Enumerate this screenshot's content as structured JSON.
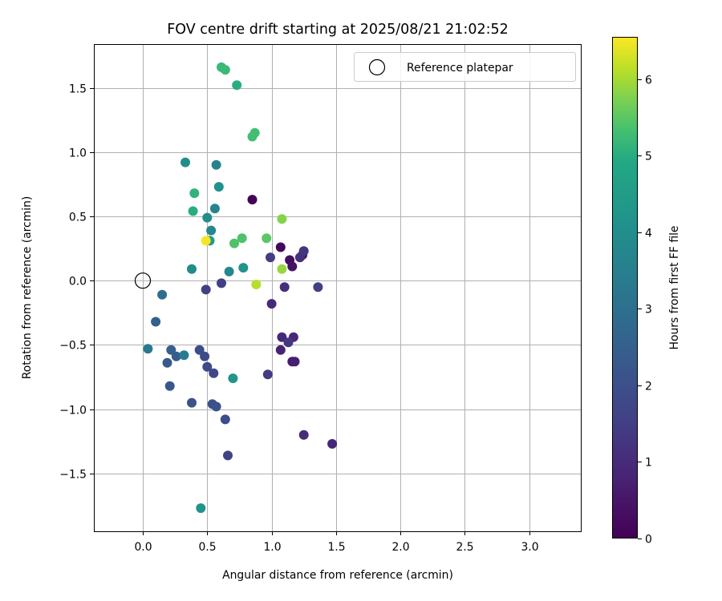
{
  "chart_data": {
    "type": "scatter",
    "title": "FOV centre drift starting at 2025/08/21 21:02:52",
    "xlabel": "Angular distance from reference (arcmin)",
    "ylabel": "Rotation from reference (arcmin)",
    "xlim": [
      -0.38,
      3.4
    ],
    "ylim": [
      -1.95,
      1.84
    ],
    "xticks": [
      0.0,
      0.5,
      1.0,
      1.5,
      2.0,
      2.5,
      3.0
    ],
    "xtick_labels": [
      "0.0",
      "0.5",
      "1.0",
      "1.5",
      "2.0",
      "2.5",
      "3.0"
    ],
    "yticks": [
      -1.5,
      -1.0,
      -0.5,
      0.0,
      0.5,
      1.0,
      1.5
    ],
    "ytick_labels": [
      "−1.5",
      "−1.0",
      "−0.5",
      "0.0",
      "0.5",
      "1.0",
      "1.5"
    ],
    "grid": true,
    "legend": {
      "placement": "top-right",
      "entries": [
        {
          "label": "Reference platepar",
          "marker": "open-circle"
        }
      ]
    },
    "reference_point": {
      "x": 0.0,
      "y": 0.0
    },
    "colorbar": {
      "label": "Hours from first FF file",
      "colormap": "viridis",
      "range": [
        0,
        6.55
      ],
      "ticks": [
        0,
        1,
        2,
        3,
        4,
        5,
        6
      ],
      "tick_labels": [
        "0",
        "1",
        "2",
        "3",
        "4",
        "5",
        "6"
      ]
    },
    "points": [
      {
        "x": 0.85,
        "y": 0.63,
        "hours": 0.05
      },
      {
        "x": 1.07,
        "y": 0.26,
        "hours": 0.15
      },
      {
        "x": 1.14,
        "y": 0.16,
        "hours": 0.3
      },
      {
        "x": 1.16,
        "y": 0.11,
        "hours": 0.4
      },
      {
        "x": 1.24,
        "y": 0.2,
        "hours": 0.5
      },
      {
        "x": 1.16,
        "y": -0.63,
        "hours": 0.6
      },
      {
        "x": 1.18,
        "y": -0.63,
        "hours": 0.7
      },
      {
        "x": 1.07,
        "y": -0.54,
        "hours": 0.8
      },
      {
        "x": 1.08,
        "y": -0.44,
        "hours": 0.9
      },
      {
        "x": 1.17,
        "y": -0.44,
        "hours": 0.95
      },
      {
        "x": 1.0,
        "y": -0.18,
        "hours": 1.0
      },
      {
        "x": 1.1,
        "y": -0.05,
        "hours": 1.1
      },
      {
        "x": 1.22,
        "y": 0.18,
        "hours": 1.15
      },
      {
        "x": 1.25,
        "y": 0.23,
        "hours": 1.25
      },
      {
        "x": 1.47,
        "y": -1.27,
        "hours": 0.9
      },
      {
        "x": 1.25,
        "y": -1.2,
        "hours": 1.05
      },
      {
        "x": 1.13,
        "y": -0.48,
        "hours": 1.3
      },
      {
        "x": 0.97,
        "y": -0.73,
        "hours": 1.4
      },
      {
        "x": 0.99,
        "y": 0.18,
        "hours": 1.45
      },
      {
        "x": 1.36,
        "y": -0.05,
        "hours": 1.5
      },
      {
        "x": 0.61,
        "y": -0.02,
        "hours": 1.5
      },
      {
        "x": 0.49,
        "y": -0.07,
        "hours": 1.55
      },
      {
        "x": 0.66,
        "y": -1.36,
        "hours": 1.6
      },
      {
        "x": 0.55,
        "y": -0.72,
        "hours": 1.7
      },
      {
        "x": 0.5,
        "y": -0.67,
        "hours": 1.8
      },
      {
        "x": 0.48,
        "y": -0.59,
        "hours": 1.85
      },
      {
        "x": 0.44,
        "y": -0.54,
        "hours": 1.9
      },
      {
        "x": 0.64,
        "y": -1.08,
        "hours": 1.95
      },
      {
        "x": 0.54,
        "y": -0.96,
        "hours": 2.0
      },
      {
        "x": 0.57,
        "y": -0.98,
        "hours": 2.0
      },
      {
        "x": 0.38,
        "y": -0.95,
        "hours": 2.1
      },
      {
        "x": 0.21,
        "y": -0.82,
        "hours": 2.2
      },
      {
        "x": 0.19,
        "y": -0.64,
        "hours": 2.3
      },
      {
        "x": 0.26,
        "y": -0.59,
        "hours": 2.4
      },
      {
        "x": 0.22,
        "y": -0.54,
        "hours": 2.45
      },
      {
        "x": 0.1,
        "y": -0.32,
        "hours": 2.5
      },
      {
        "x": 0.15,
        "y": -0.11,
        "hours": 2.9
      },
      {
        "x": 0.04,
        "y": -0.53,
        "hours": 3.3
      },
      {
        "x": 0.32,
        "y": -0.58,
        "hours": 3.4
      },
      {
        "x": 0.57,
        "y": 0.9,
        "hours": 3.6
      },
      {
        "x": 0.56,
        "y": 0.56,
        "hours": 3.7
      },
      {
        "x": 0.67,
        "y": 0.07,
        "hours": 3.8
      },
      {
        "x": 0.53,
        "y": 0.39,
        "hours": 3.8
      },
      {
        "x": 0.38,
        "y": 0.09,
        "hours": 3.9
      },
      {
        "x": 0.5,
        "y": 0.49,
        "hours": 4.0
      },
      {
        "x": 0.33,
        "y": 0.92,
        "hours": 4.0
      },
      {
        "x": 0.59,
        "y": 0.73,
        "hours": 4.1
      },
      {
        "x": 0.78,
        "y": 0.1,
        "hours": 4.2
      },
      {
        "x": 0.7,
        "y": -0.76,
        "hours": 4.2
      },
      {
        "x": 0.45,
        "y": -1.77,
        "hours": 4.2
      },
      {
        "x": 0.52,
        "y": 0.31,
        "hours": 4.4
      },
      {
        "x": 0.73,
        "y": 1.52,
        "hours": 5.0
      },
      {
        "x": 0.39,
        "y": 0.54,
        "hours": 5.0
      },
      {
        "x": 0.4,
        "y": 0.68,
        "hours": 5.1
      },
      {
        "x": 0.61,
        "y": 1.66,
        "hours": 5.2
      },
      {
        "x": 0.64,
        "y": 1.64,
        "hours": 5.2
      },
      {
        "x": 0.87,
        "y": 1.15,
        "hours": 5.3
      },
      {
        "x": 0.85,
        "y": 1.12,
        "hours": 5.3
      },
      {
        "x": 0.71,
        "y": 0.29,
        "hours": 5.4
      },
      {
        "x": 0.77,
        "y": 0.33,
        "hours": 5.4
      },
      {
        "x": 0.96,
        "y": 0.33,
        "hours": 5.5
      },
      {
        "x": 1.08,
        "y": 0.48,
        "hours": 5.8
      },
      {
        "x": 1.08,
        "y": 0.09,
        "hours": 5.9
      },
      {
        "x": 0.88,
        "y": -0.03,
        "hours": 6.1
      },
      {
        "x": 0.49,
        "y": 0.31,
        "hours": 6.5
      }
    ]
  }
}
